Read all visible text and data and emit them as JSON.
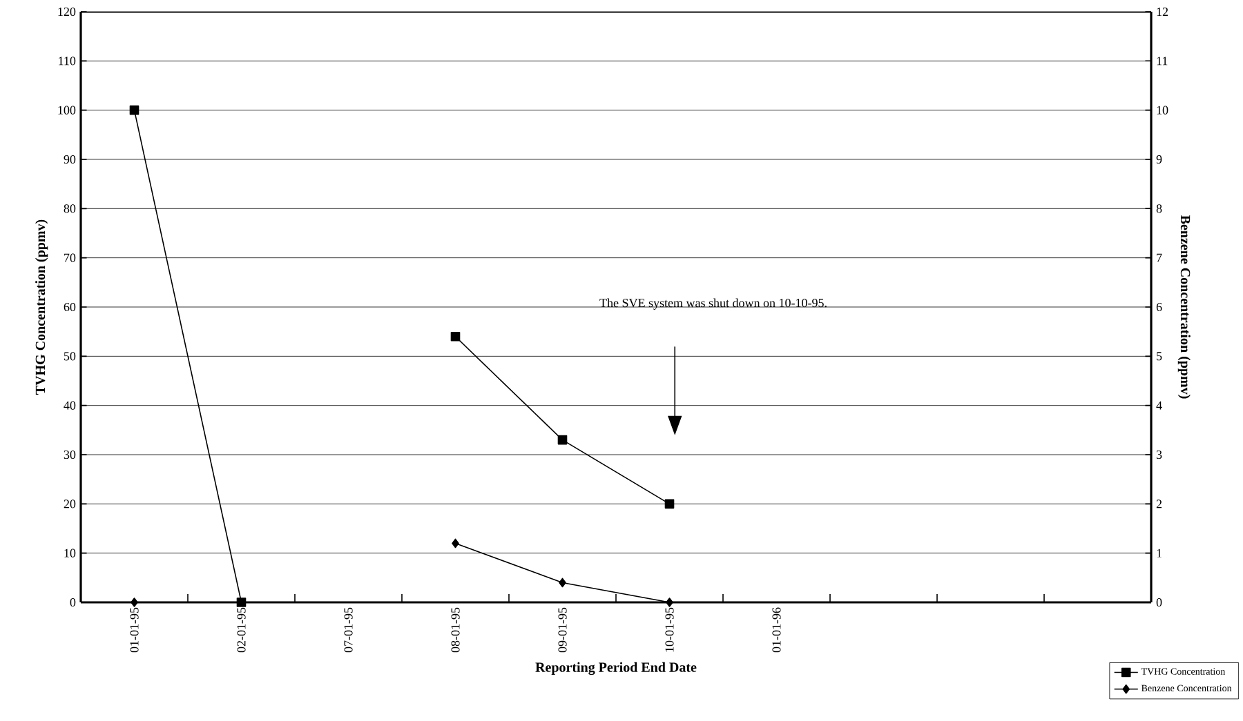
{
  "chart_data": {
    "type": "line",
    "categories": [
      "01-01-95",
      "02-01-95",
      "07-01-95",
      "08-01-95",
      "09-01-95",
      "10-01-95",
      "01-01-96",
      null,
      null,
      null
    ],
    "series": [
      {
        "name": "TVHG Concentration",
        "color": "#000000",
        "marker": "square",
        "values": [
          100,
          0,
          null,
          54,
          33,
          20,
          null,
          null,
          null,
          null
        ]
      },
      {
        "name": "Benzene Concentration",
        "color": "#000000",
        "marker": "diamond",
        "axis": "y2",
        "values": [
          0,
          null,
          null,
          1.2,
          0.4,
          0,
          null,
          null,
          null,
          null
        ]
      }
    ],
    "xlabel": "Reporting Period End Date",
    "ylabel": "TVHG Concentration (ppmv)",
    "y2label": "Benzene Concentration (ppmv)",
    "ylim": [
      0,
      120
    ],
    "yticks": [
      0,
      10,
      20,
      30,
      40,
      50,
      60,
      70,
      80,
      90,
      100,
      110,
      120
    ],
    "y2lim": [
      0,
      12
    ],
    "y2ticks": [
      0,
      1,
      2,
      3,
      4,
      5,
      6,
      7,
      8,
      9,
      10,
      11,
      12
    ],
    "grid": "y",
    "legend": "bottom right",
    "line_style": "solid",
    "annotations": [
      "The SVE system was shut down on 10-10-95."
    ]
  }
}
